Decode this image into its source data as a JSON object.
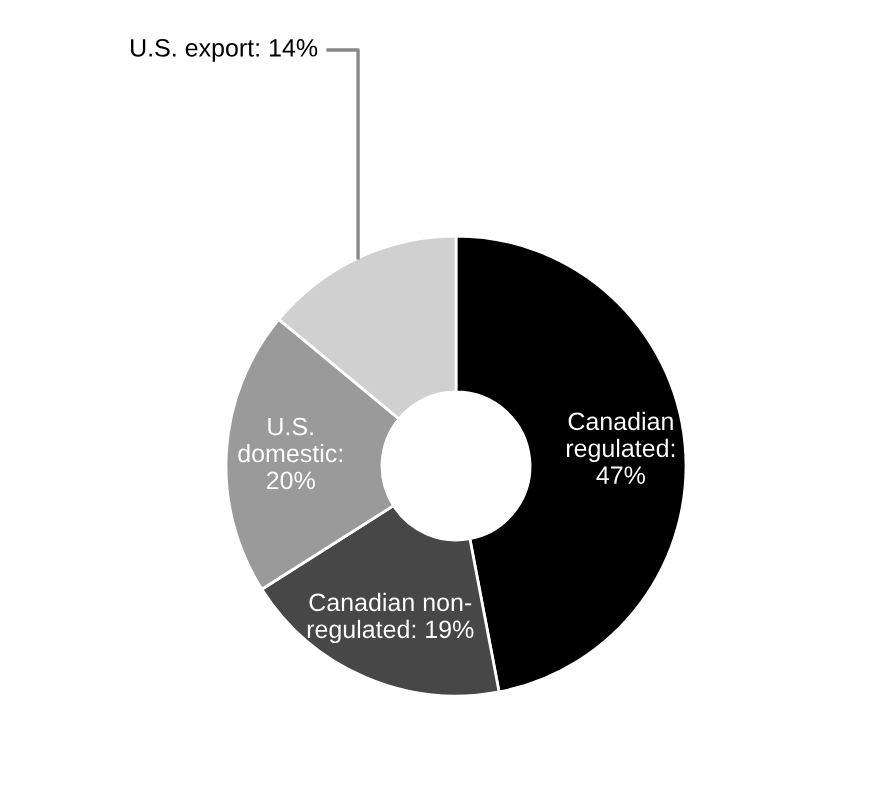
{
  "chart_data": {
    "type": "donut",
    "categories": [
      "Canadian\nregulated:\n47%",
      "Canadian non-\nregulated: 19%",
      "U.S.\ndomestic:\n20%",
      "U.S. export: 14%"
    ],
    "values": [
      47,
      19,
      20,
      14
    ],
    "colors": [
      "#000000",
      "#474747",
      "#9a9a9a",
      "#d0d0d0"
    ]
  }
}
